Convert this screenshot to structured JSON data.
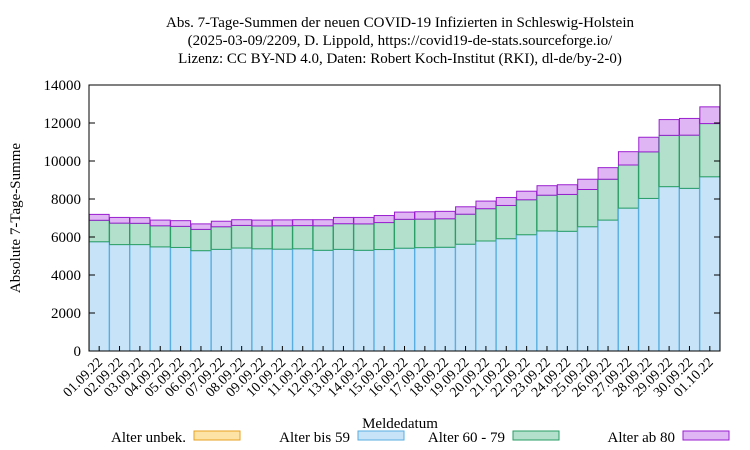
{
  "chart_data": {
    "type": "bar",
    "stacked": true,
    "title_lines": [
      "Abs. 7-Tage-Summen der neuen COVID-19 Infizierten in Schleswig-Holstein",
      "(2025-03-09/2209, D. Lippold, https://covid19-de-stats.sourceforge.io/",
      "Lizenz: CC BY-ND 4.0, Daten: Robert Koch-Institut (RKI), dl-de/by-2-0)"
    ],
    "xlabel": "Meldedatum",
    "ylabel": "Absolute 7-Tage-Summe",
    "ylim": [
      0,
      14000
    ],
    "yticks": [
      0,
      2000,
      4000,
      6000,
      8000,
      10000,
      12000,
      14000
    ],
    "legend_placement": "bottom",
    "categories": [
      "01.09.22",
      "02.09.22",
      "03.09.22",
      "04.09.22",
      "05.09.22",
      "06.09.22",
      "07.09.22",
      "08.09.22",
      "09.09.22",
      "10.09.22",
      "11.09.22",
      "12.09.22",
      "13.09.22",
      "14.09.22",
      "15.09.22",
      "16.09.22",
      "17.09.22",
      "18.09.22",
      "19.09.22",
      "20.09.22",
      "21.09.22",
      "22.09.22",
      "23.09.22",
      "24.09.22",
      "25.09.22",
      "26.09.22",
      "27.09.22",
      "28.09.22",
      "29.09.22",
      "30.09.22",
      "01.10.22"
    ],
    "series": [
      {
        "name": "Alter unbek.",
        "fill": "#fde4a6",
        "stroke": "#e8a020",
        "values": [
          0,
          0,
          0,
          0,
          0,
          0,
          0,
          0,
          0,
          0,
          0,
          0,
          0,
          0,
          0,
          0,
          0,
          0,
          0,
          0,
          0,
          0,
          0,
          0,
          0,
          0,
          0,
          0,
          0,
          0,
          0
        ]
      },
      {
        "name": "Alter bis 59",
        "fill": "#c6e3f7",
        "stroke": "#58aee0",
        "values": [
          5750,
          5600,
          5600,
          5480,
          5450,
          5280,
          5350,
          5420,
          5380,
          5360,
          5380,
          5300,
          5350,
          5300,
          5340,
          5410,
          5440,
          5460,
          5620,
          5790,
          5910,
          6120,
          6320,
          6300,
          6540,
          6890,
          7520,
          8030,
          8650,
          8560,
          9170
        ]
      },
      {
        "name": "Alter 60 - 79",
        "fill": "#b2e0cd",
        "stroke": "#2a9e64",
        "values": [
          1130,
          1130,
          1120,
          1110,
          1110,
          1120,
          1190,
          1190,
          1200,
          1230,
          1220,
          1290,
          1350,
          1390,
          1420,
          1520,
          1500,
          1500,
          1580,
          1700,
          1750,
          1840,
          1880,
          1940,
          1960,
          2150,
          2270,
          2450,
          2700,
          2800,
          2800
        ]
      },
      {
        "name": "Alter ab 80",
        "fill": "#dfb6f3",
        "stroke": "#9a1ecf",
        "values": [
          310,
          300,
          300,
          300,
          300,
          290,
          290,
          300,
          310,
          310,
          310,
          320,
          330,
          340,
          370,
          380,
          390,
          390,
          390,
          400,
          420,
          450,
          500,
          510,
          540,
          610,
          700,
          770,
          830,
          880,
          880
        ]
      }
    ]
  }
}
